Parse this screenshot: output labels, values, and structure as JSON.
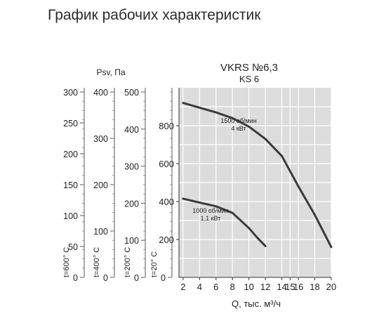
{
  "page": {
    "title": "График рабочих характеристик"
  },
  "chart_data": {
    "type": "line",
    "title": "VKRS №6,3",
    "subtitle": "KS 6",
    "xlabel": "Q, тыс. м³/ч",
    "ylabel": "",
    "xlim": [
      1.5,
      20
    ],
    "ylim": [
      0,
      1000
    ],
    "x_ticks": [
      "2",
      "4",
      "6",
      "8",
      "10",
      "12",
      "14",
      "15",
      "16",
      "18",
      "20"
    ],
    "y_ticks": [
      "200",
      "400",
      "600",
      "800"
    ],
    "grid": true,
    "series": [
      {
        "label_lines": [
          "1500 об/мин",
          "4 кВт"
        ],
        "x": [
          2,
          4,
          6,
          8,
          10,
          12,
          14,
          15,
          16,
          18,
          20
        ],
        "y": [
          920,
          895,
          870,
          840,
          795,
          730,
          640,
          560,
          480,
          330,
          160
        ]
      },
      {
        "label_lines": [
          "1000 об/мин",
          "1,1 кВт"
        ],
        "x": [
          2,
          4,
          6,
          8,
          10,
          11,
          12
        ],
        "y": [
          415,
          395,
          375,
          340,
          260,
          210,
          165
        ]
      }
    ],
    "psv_label": "Psv, Па",
    "side_scales": [
      {
        "temp_label": "t=600° C",
        "max": 300,
        "ticks": [
          "300",
          "250",
          "200",
          "150",
          "100",
          "50",
          "0"
        ]
      },
      {
        "temp_label": "t=400° C",
        "max": 400,
        "ticks": [
          "400",
          "300",
          "200",
          "100",
          "0"
        ]
      },
      {
        "temp_label": "t=200° C",
        "max": 500,
        "ticks": [
          "500",
          "400",
          "300",
          "200",
          "100",
          "0"
        ]
      },
      {
        "temp_label": "t=20° C",
        "max": 1000,
        "ticks": [
          "0"
        ]
      }
    ]
  }
}
